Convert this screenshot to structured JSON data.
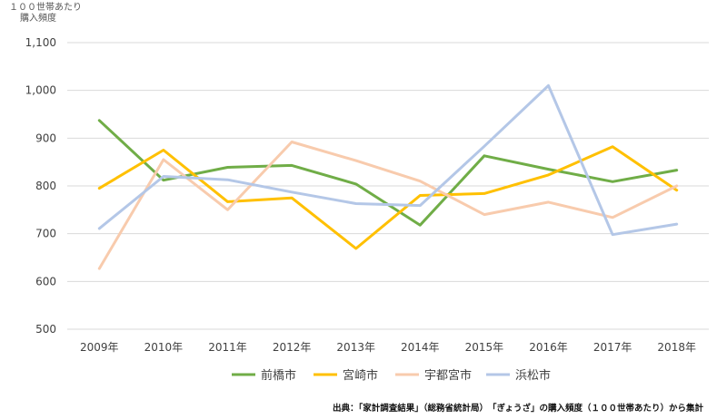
{
  "chart_data": {
    "type": "line",
    "title": "",
    "ylabel": "１００世帯あたり 購入頻度",
    "ylabel_line1": "１００世帯あたり",
    "ylabel_line2": "購入頻度",
    "xlabel": "",
    "ylim": [
      500,
      1100
    ],
    "yticks": [
      500,
      600,
      700,
      800,
      900,
      1000,
      1100
    ],
    "ytick_labels": [
      "500",
      "600",
      "700",
      "800",
      "900",
      "1,000",
      "1,100"
    ],
    "categories": [
      "2009年",
      "2010年",
      "2011年",
      "2012年",
      "2013年",
      "2014年",
      "2015年",
      "2016年",
      "2017年",
      "2018年"
    ],
    "grid": true,
    "legend_position": "bottom",
    "series": [
      {
        "name": "前橋市",
        "color": "#70ad47",
        "values": [
          937,
          812,
          839,
          843,
          804,
          718,
          863,
          835,
          809,
          833
        ]
      },
      {
        "name": "宮崎市",
        "color": "#ffc000",
        "values": [
          795,
          875,
          767,
          775,
          669,
          780,
          784,
          823,
          882,
          791
        ]
      },
      {
        "name": "宇都宮市",
        "color": "#f8cbad",
        "values": [
          627,
          855,
          750,
          892,
          853,
          810,
          740,
          766,
          734,
          800
        ]
      },
      {
        "name": "浜松市",
        "color": "#b4c7e7",
        "values": [
          711,
          820,
          813,
          787,
          763,
          759,
          883,
          1010,
          698,
          720
        ]
      }
    ]
  },
  "source_text": "出典：「家計調査結果」（総務省統計局）　「ぎょうざ」の購入頻度（１００世帯あたり）から集計"
}
